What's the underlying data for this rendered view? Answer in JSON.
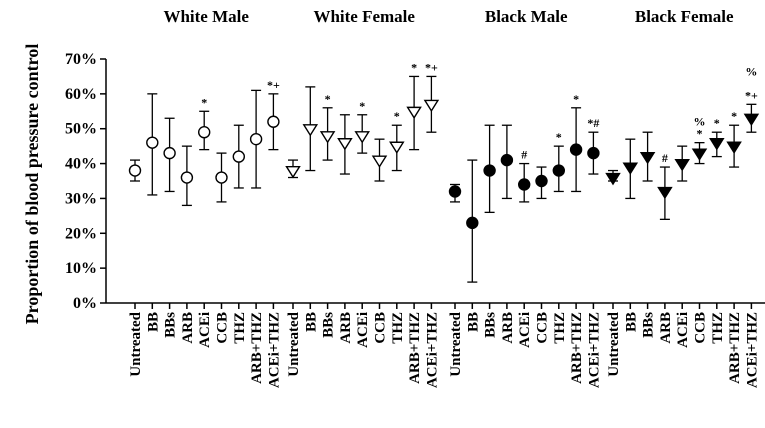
{
  "chart_data": {
    "type": "scatter",
    "ylabel": "Proportion of blood pressure control",
    "ylim": [
      0,
      70
    ],
    "y_ticks": [
      "0%",
      "10%",
      "20%",
      "30%",
      "40%",
      "50%",
      "60%",
      "70%"
    ],
    "categories": [
      "Untreated",
      "BB",
      "BBs",
      "ARB",
      "ACEi",
      "CCB",
      "THZ",
      "ARB+THZ",
      "ACEi+THZ"
    ],
    "grid": false,
    "groups": [
      {
        "title": "White Male",
        "marker": "circle-open",
        "points": [
          {
            "category": "Untreated",
            "value": 38,
            "low": 35,
            "high": 41,
            "note": ""
          },
          {
            "category": "BB",
            "value": 46,
            "low": 31,
            "high": 60,
            "note": ""
          },
          {
            "category": "BBs",
            "value": 43,
            "low": 32,
            "high": 53,
            "note": ""
          },
          {
            "category": "ARB",
            "value": 36,
            "low": 28,
            "high": 45,
            "note": ""
          },
          {
            "category": "ACEi",
            "value": 49,
            "low": 44,
            "high": 55,
            "note": "*"
          },
          {
            "category": "CCB",
            "value": 36,
            "low": 29,
            "high": 43,
            "note": ""
          },
          {
            "category": "THZ",
            "value": 42,
            "low": 33,
            "high": 51,
            "note": ""
          },
          {
            "category": "ARB+THZ",
            "value": 47,
            "low": 33,
            "high": 61,
            "note": ""
          },
          {
            "category": "ACEi+THZ",
            "value": 52,
            "low": 44,
            "high": 60,
            "note": "*+"
          }
        ]
      },
      {
        "title": "White Female",
        "marker": "triangle-down-open",
        "points": [
          {
            "category": "Untreated",
            "value": 38,
            "low": 36,
            "high": 41,
            "note": ""
          },
          {
            "category": "BB",
            "value": 50,
            "low": 38,
            "high": 62,
            "note": ""
          },
          {
            "category": "BBs",
            "value": 48,
            "low": 41,
            "high": 56,
            "note": "*"
          },
          {
            "category": "ARB",
            "value": 46,
            "low": 37,
            "high": 54,
            "note": ""
          },
          {
            "category": "ACEi",
            "value": 48,
            "low": 43,
            "high": 54,
            "note": "*"
          },
          {
            "category": "CCB",
            "value": 41,
            "low": 35,
            "high": 47,
            "note": ""
          },
          {
            "category": "THZ",
            "value": 45,
            "low": 38,
            "high": 51,
            "note": "*"
          },
          {
            "category": "ARB+THZ",
            "value": 55,
            "low": 44,
            "high": 65,
            "note": "*"
          },
          {
            "category": "ACEi+THZ",
            "value": 57,
            "low": 49,
            "high": 65,
            "note": "*+"
          }
        ]
      },
      {
        "title": "Black Male",
        "marker": "circle-filled",
        "points": [
          {
            "category": "Untreated",
            "value": 32,
            "low": 29,
            "high": 34,
            "note": ""
          },
          {
            "category": "BB",
            "value": 23,
            "low": 6,
            "high": 41,
            "note": ""
          },
          {
            "category": "BBs",
            "value": 38,
            "low": 26,
            "high": 51,
            "note": ""
          },
          {
            "category": "ARB",
            "value": 41,
            "low": 30,
            "high": 51,
            "note": ""
          },
          {
            "category": "ACEi",
            "value": 34,
            "low": 29,
            "high": 40,
            "note": "#"
          },
          {
            "category": "CCB",
            "value": 35,
            "low": 30,
            "high": 39,
            "note": ""
          },
          {
            "category": "THZ",
            "value": 38,
            "low": 32,
            "high": 45,
            "note": "*"
          },
          {
            "category": "ARB+THZ",
            "value": 44,
            "low": 32,
            "high": 56,
            "note": "*"
          },
          {
            "category": "ACEi+THZ",
            "value": 43,
            "low": 37,
            "high": 49,
            "note": "*#"
          }
        ]
      },
      {
        "title": "Black Female",
        "marker": "triangle-down-filled",
        "points": [
          {
            "category": "Untreated",
            "value": 36,
            "low": 35,
            "high": 38,
            "note": ""
          },
          {
            "category": "BB",
            "value": 39,
            "low": 30,
            "high": 47,
            "note": ""
          },
          {
            "category": "BBs",
            "value": 42,
            "low": 35,
            "high": 49,
            "note": ""
          },
          {
            "category": "ARB",
            "value": 32,
            "low": 24,
            "high": 39,
            "note": "#"
          },
          {
            "category": "ACEi",
            "value": 40,
            "low": 35,
            "high": 45,
            "note": ""
          },
          {
            "category": "CCB",
            "value": 43,
            "low": 40,
            "high": 46,
            "note": "*%"
          },
          {
            "category": "THZ",
            "value": 46,
            "low": 42,
            "high": 49,
            "note": "*"
          },
          {
            "category": "ARB+THZ",
            "value": 45,
            "low": 39,
            "high": 51,
            "note": "*"
          },
          {
            "category": "ACEi+THZ",
            "value": 53,
            "low": 49,
            "high": 57,
            "note": "%*+"
          }
        ]
      }
    ]
  }
}
